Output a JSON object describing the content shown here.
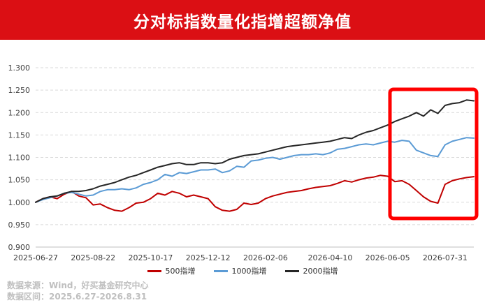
{
  "header": {
    "title": "分对标指数量化指增超额净值"
  },
  "footer": {
    "source": "数据来源：Wind，好买基金研究中心",
    "range": "数据区间：2025.6.27-2026.8.31"
  },
  "colors": {
    "title_bg": "#db0f14",
    "series": [
      "#c00000",
      "#5b9bd5",
      "#262626"
    ],
    "highlight": "#ff0000",
    "grid": "#d9d9d9"
  },
  "chart_data": {
    "type": "line",
    "title": "分对标指数量化指增超额净值",
    "ylim": [
      0.9,
      1.3
    ],
    "yticks": [
      "0.900",
      "0.950",
      "1.000",
      "1.050",
      "1.100",
      "1.150",
      "1.200",
      "1.250",
      "1.300"
    ],
    "x_tick_labels": [
      "2025-06-27",
      "2025-08-22",
      "2025-10-17",
      "2025-12-12",
      "2026-02-06",
      "2026-04-10",
      "2026-06-05",
      "2026-07-31"
    ],
    "x_tick_index": [
      0,
      8,
      16,
      24,
      32,
      41,
      49,
      57
    ],
    "x": [
      "2025-06-27",
      "2025-07-04",
      "2025-07-11",
      "2025-07-18",
      "2025-07-25",
      "2025-08-01",
      "2025-08-08",
      "2025-08-15",
      "2025-08-22",
      "2025-08-29",
      "2025-09-05",
      "2025-09-12",
      "2025-09-19",
      "2025-09-26",
      "2025-10-03",
      "2025-10-10",
      "2025-10-17",
      "2025-10-24",
      "2025-10-31",
      "2025-11-07",
      "2025-11-14",
      "2025-11-21",
      "2025-11-28",
      "2025-12-05",
      "2025-12-12",
      "2025-12-19",
      "2025-12-26",
      "2026-01-02",
      "2026-01-09",
      "2026-01-16",
      "2026-01-23",
      "2026-01-30",
      "2026-02-06",
      "2026-02-13",
      "2026-02-20",
      "2026-02-27",
      "2026-03-06",
      "2026-03-13",
      "2026-03-20",
      "2026-03-27",
      "2026-04-03",
      "2026-04-10",
      "2026-04-17",
      "2026-04-24",
      "2026-05-01",
      "2026-05-08",
      "2026-05-15",
      "2026-05-22",
      "2026-05-29",
      "2026-06-05",
      "2026-06-12",
      "2026-06-19",
      "2026-06-26",
      "2026-07-03",
      "2026-07-10",
      "2026-07-17",
      "2026-07-24",
      "2026-07-31",
      "2026-08-07",
      "2026-08-14",
      "2026-08-21",
      "2026-08-28"
    ],
    "series": [
      {
        "name": "500指增",
        "values": [
          1.0,
          1.008,
          1.012,
          1.008,
          1.018,
          1.024,
          1.014,
          1.01,
          0.994,
          0.996,
          0.988,
          0.982,
          0.98,
          0.988,
          0.998,
          1.0,
          1.008,
          1.02,
          1.016,
          1.024,
          1.02,
          1.012,
          1.016,
          1.012,
          1.008,
          0.99,
          0.982,
          0.98,
          0.984,
          0.998,
          0.995,
          0.998,
          1.008,
          1.014,
          1.018,
          1.022,
          1.024,
          1.026,
          1.03,
          1.033,
          1.035,
          1.037,
          1.042,
          1.048,
          1.045,
          1.05,
          1.054,
          1.056,
          1.06,
          1.058,
          1.046,
          1.048,
          1.04,
          1.026,
          1.012,
          1.002,
          0.998,
          1.04,
          1.048,
          1.052,
          1.055,
          1.057
        ]
      },
      {
        "name": "1000指增",
        "values": [
          1.0,
          1.006,
          1.01,
          1.014,
          1.02,
          1.022,
          1.018,
          1.014,
          1.016,
          1.024,
          1.028,
          1.028,
          1.03,
          1.028,
          1.032,
          1.04,
          1.044,
          1.05,
          1.062,
          1.058,
          1.066,
          1.064,
          1.068,
          1.072,
          1.072,
          1.074,
          1.066,
          1.07,
          1.08,
          1.078,
          1.092,
          1.094,
          1.098,
          1.1,
          1.096,
          1.1,
          1.104,
          1.106,
          1.106,
          1.108,
          1.106,
          1.11,
          1.118,
          1.12,
          1.124,
          1.128,
          1.13,
          1.128,
          1.132,
          1.136,
          1.134,
          1.138,
          1.136,
          1.116,
          1.11,
          1.104,
          1.102,
          1.128,
          1.136,
          1.14,
          1.144,
          1.143
        ]
      },
      {
        "name": "2000指增",
        "values": [
          1.0,
          1.008,
          1.012,
          1.014,
          1.02,
          1.024,
          1.024,
          1.026,
          1.03,
          1.036,
          1.04,
          1.044,
          1.05,
          1.056,
          1.06,
          1.066,
          1.072,
          1.078,
          1.082,
          1.086,
          1.088,
          1.084,
          1.084,
          1.088,
          1.088,
          1.086,
          1.088,
          1.096,
          1.1,
          1.104,
          1.106,
          1.108,
          1.112,
          1.116,
          1.12,
          1.124,
          1.126,
          1.128,
          1.13,
          1.132,
          1.134,
          1.136,
          1.14,
          1.144,
          1.142,
          1.15,
          1.156,
          1.16,
          1.166,
          1.172,
          1.18,
          1.186,
          1.192,
          1.2,
          1.192,
          1.206,
          1.198,
          1.216,
          1.22,
          1.222,
          1.228,
          1.226
        ]
      }
    ],
    "legend": "bottom",
    "grid": true
  }
}
